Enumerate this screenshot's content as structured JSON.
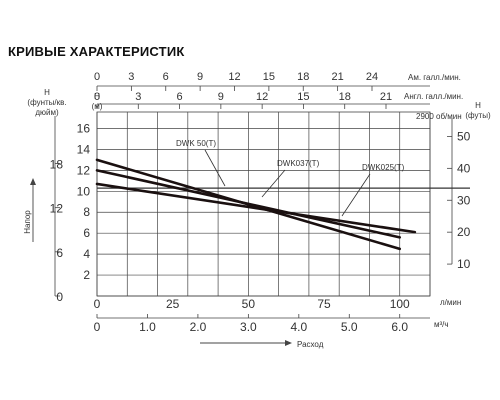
{
  "page_title": "КРИВЫЕ ХАРАКТЕРИСТИК",
  "chart_data": {
    "type": "line",
    "x_axis": {
      "label": "л/мин",
      "range": [
        0,
        110
      ],
      "ticks": [
        0,
        25,
        50,
        75,
        100
      ]
    },
    "y_axis": {
      "label": "H\n(м)",
      "range": [
        0,
        17
      ],
      "ticks": [
        2,
        4,
        6,
        8,
        10,
        12,
        14,
        16
      ]
    },
    "secondary_axes": {
      "us_gpm": {
        "label": "Ам. галл./мин.",
        "ticks": [
          "0",
          "3",
          "6",
          "9",
          "12",
          "15",
          "18",
          "21",
          "24"
        ]
      },
      "imp_gpm": {
        "label": "Англ. галл./мин.",
        "ticks": [
          "0",
          "3",
          "6",
          "9",
          "12",
          "15",
          "18",
          "21"
        ]
      },
      "m3h": {
        "label": "м³/ч",
        "ticks": [
          "0",
          "1.0",
          "2.0",
          "3.0",
          "4.0",
          "5.0",
          "6.0"
        ]
      },
      "psi": {
        "label": "H\n(фунты/кв.\nдюйм)",
        "ticks": [
          "0",
          "6",
          "12",
          "18"
        ]
      },
      "feet": {
        "label": "H\n(футы)",
        "ticks": [
          "10",
          "20",
          "30",
          "40",
          "50"
        ]
      },
      "napor_label": "Напор",
      "rashod_label": "Расход"
    },
    "speed_note": "2900 об/мин",
    "series": [
      {
        "name": "DWK 50(T)",
        "x": [
          0,
          100
        ],
        "y": [
          13.0,
          4.5
        ]
      },
      {
        "name": "DWK037(T)",
        "x": [
          0,
          100
        ],
        "y": [
          12.0,
          5.6
        ]
      },
      {
        "name": "DWK025(T)",
        "x": [
          0,
          105
        ],
        "y": [
          10.7,
          6.1
        ]
      }
    ],
    "reference_line_y": 10.3,
    "grid": true,
    "legend_placement": "labels on curves"
  },
  "colors": {
    "curve": "#1a1010",
    "grid": "#444444",
    "text": "#333333"
  }
}
